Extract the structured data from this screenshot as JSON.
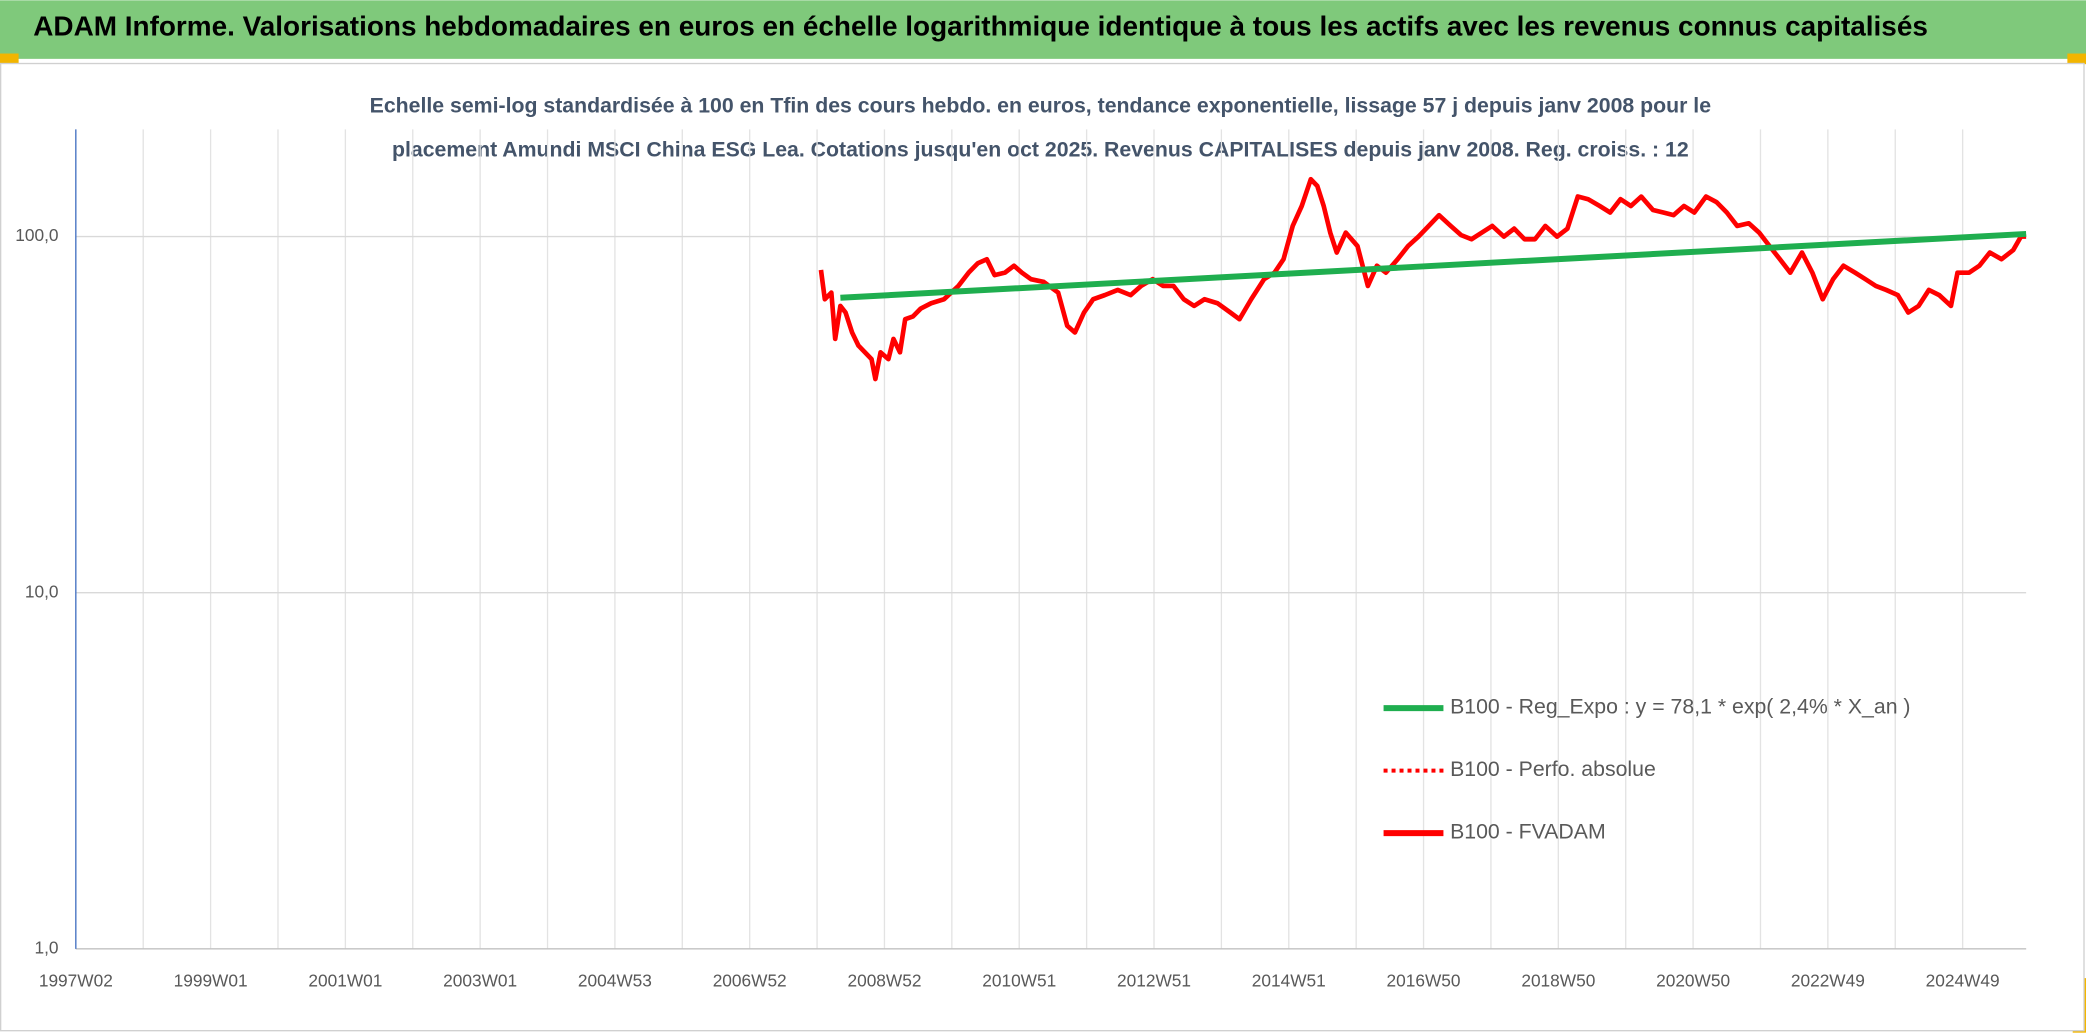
{
  "header": {
    "title": "ADAM Informe. Valorisations hebdomadaires en euros en échelle logarithmique identique à tous les actifs avec les revenus connus capitalisés"
  },
  "chart_data": {
    "type": "line",
    "title": [
      "Echelle semi-log standardisée à 100 en Tfin des cours hebdo. en euros, tendance exponentielle, lissage 57 j depuis janv 2008 pour le",
      "placement Amundi MSCI China ESG Lea. Cotations jusqu'en oct 2025. Revenus CAPITALISES depuis janv 2008. Reg. croiss. : 12"
    ],
    "log_scale": true,
    "grid": true,
    "legend_position": "lower right",
    "ylim": [
      1,
      200
    ],
    "yticks": [
      {
        "value": 1,
        "label": "1,0"
      },
      {
        "value": 10,
        "label": "10,0"
      },
      {
        "value": 100,
        "label": "100,0"
      }
    ],
    "xlim": [
      0,
      1505
    ],
    "xticks": [
      {
        "value": 0,
        "label": "1997W02"
      },
      {
        "value": 104,
        "label": "1999W01"
      },
      {
        "value": 208,
        "label": "2001W01"
      },
      {
        "value": 312,
        "label": "2003W01"
      },
      {
        "value": 416,
        "label": "2004W53"
      },
      {
        "value": 520,
        "label": "2006W52"
      },
      {
        "value": 624,
        "label": "2008W52"
      },
      {
        "value": 728,
        "label": "2010W51"
      },
      {
        "value": 832,
        "label": "2012W51"
      },
      {
        "value": 936,
        "label": "2014W51"
      },
      {
        "value": 1040,
        "label": "2016W50"
      },
      {
        "value": 1144,
        "label": "2018W50"
      },
      {
        "value": 1248,
        "label": "2020W50"
      },
      {
        "value": 1352,
        "label": "2022W49"
      },
      {
        "value": 1456,
        "label": "2024W49"
      }
    ],
    "x_minor_grid": [
      52,
      156,
      260,
      364,
      468,
      572,
      676,
      780,
      884,
      988,
      1092,
      1196,
      1300,
      1404
    ],
    "series": [
      {
        "name": "B100 - Reg_Expo : y = 78,1 * exp( 2,4% *  X_an )",
        "color": "#1fae4f",
        "style": "solid",
        "x": [
          590,
          1505
        ],
        "values": [
          67.3,
          101.7
        ]
      },
      {
        "name": "B100 - Perfo. absolue",
        "color": "#ff0000",
        "style": "dotted",
        "x": [],
        "values": []
      },
      {
        "name": "B100 - FVADAM",
        "color": "#ff0000",
        "style": "solid",
        "x": [
          575,
          578,
          583,
          586,
          590,
          594,
          599,
          604,
          609,
          614,
          617,
          621,
          627,
          631,
          636,
          640,
          646,
          652,
          660,
          670,
          681,
          689,
          696,
          703,
          709,
          717,
          724,
          730,
          737,
          747,
          758,
          765,
          771,
          778,
          785,
          794,
          804,
          814,
          822,
          831,
          839,
          847,
          855,
          863,
          871,
          881,
          891,
          898,
          907,
          917,
          925,
          932,
          939,
          946,
          953,
          958,
          963,
          968,
          973,
          980,
          989,
          997,
          1004,
          1011,
          1020,
          1028,
          1036,
          1044,
          1052,
          1061,
          1069,
          1077,
          1085,
          1093,
          1102,
          1110,
          1118,
          1126,
          1134,
          1143,
          1151,
          1159,
          1167,
          1176,
          1184,
          1192,
          1200,
          1208,
          1217,
          1225,
          1233,
          1241,
          1249,
          1258,
          1266,
          1274,
          1282,
          1291,
          1299,
          1307,
          1315,
          1323,
          1332,
          1340,
          1348,
          1356,
          1364,
          1373,
          1381,
          1389,
          1397,
          1406,
          1414,
          1422,
          1430,
          1438,
          1447,
          1452,
          1461,
          1469,
          1477,
          1486,
          1495,
          1501,
          1505
        ],
        "values": [
          80.6,
          66.7,
          69.6,
          51.6,
          63.9,
          61.2,
          53.8,
          49.4,
          47.3,
          45.3,
          39.8,
          47.3,
          45.3,
          51.6,
          47.3,
          58.6,
          59.7,
          62.8,
          65.0,
          66.7,
          72.7,
          79.2,
          84.2,
          86.4,
          77.9,
          79.2,
          82.8,
          79.2,
          75.9,
          74.6,
          69.6,
          56.2,
          53.8,
          61.2,
          66.7,
          68.5,
          70.8,
          68.5,
          72.7,
          75.9,
          72.7,
          72.7,
          66.7,
          63.9,
          66.7,
          65.0,
          61.2,
          58.6,
          66.7,
          75.9,
          79.2,
          86.4,
          107.1,
          121.9,
          144.8,
          138.7,
          121.9,
          102.6,
          90.2,
          102.6,
          94.1,
          72.7,
          82.8,
          79.2,
          86.4,
          94.1,
          100,
          107.1,
          114.8,
          107.1,
          100.9,
          98.3,
          102.6,
          107.1,
          100,
          105.3,
          98.3,
          98.3,
          107.1,
          100,
          105.3,
          129.5,
          127.3,
          121.9,
          116.8,
          127.3,
          121.9,
          129.5,
          118.8,
          116.8,
          114.8,
          121.9,
          116.8,
          129.5,
          125.1,
          116.8,
          107.1,
          109.0,
          102.6,
          94.1,
          86.4,
          79.2,
          90.2,
          79.2,
          66.7,
          75.9,
          82.8,
          79.2,
          75.9,
          72.7,
          70.8,
          68.5,
          61.2,
          63.9,
          70.8,
          68.5,
          63.9,
          79.2,
          79.2,
          82.8,
          90.2,
          86.4,
          91.7,
          100,
          100
        ]
      }
    ]
  }
}
